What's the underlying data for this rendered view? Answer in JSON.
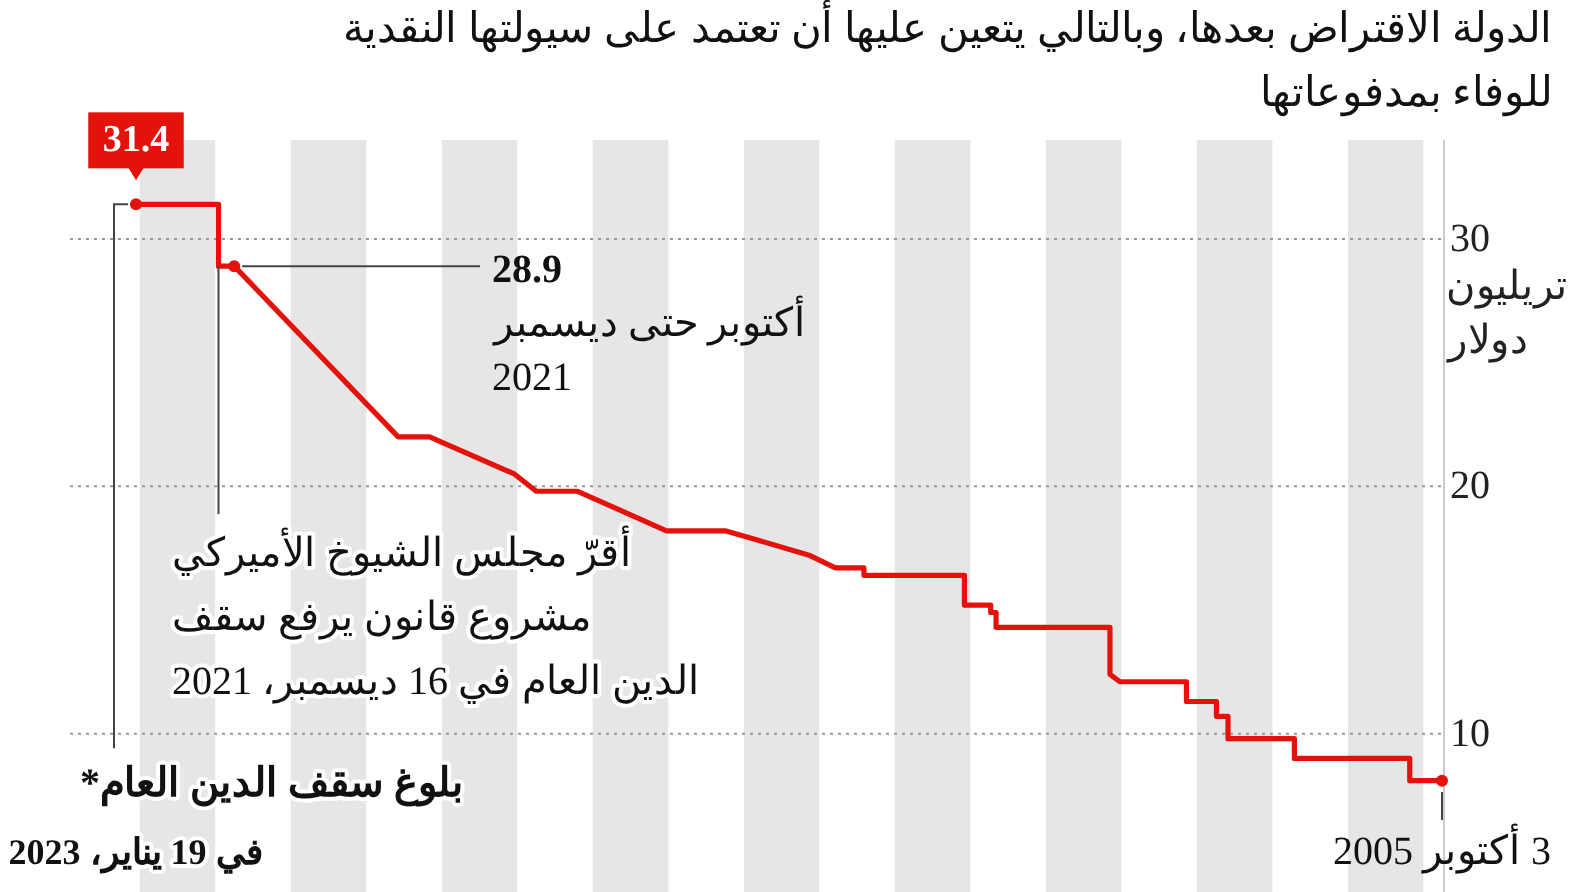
{
  "chart_data": {
    "type": "line",
    "title": "الدولة الاقتراض بعدها، وبالتالي يتعين عليها أن تعتمد على سيولتها النقدية\nللوفاء بمدفوعاتها",
    "ylabel": "تريليون دولار",
    "x": [
      "2023-01-19",
      "2021-12-16",
      "2021-12-16",
      "2021-10-01",
      "2019-07-31",
      "2019-03-01",
      "2018-01-15",
      "2017-10-01",
      "2017-03-15",
      "2016-01-10",
      "2015-04-01",
      "2014-10-15",
      "2014-02-15",
      "2013-10-15",
      "2013-05-30",
      "2013-05-30",
      "2012-01-30",
      "2012-01-30",
      "2011-09-25",
      "2011-09-25",
      "2011-08-30",
      "2011-08-30",
      "2010-02-25",
      "2010-02-25",
      "2010-01-08",
      "2009-02-20",
      "2009-02-20",
      "2008-09-28",
      "2008-09-28",
      "2008-08-03",
      "2008-08-03",
      "2007-09-17",
      "2007-09-17",
      "2006-03-08",
      "2006-03-08",
      "2005-10-03"
    ],
    "series": [
      {
        "color": "#e3120b",
        "values": [
          31.4,
          31.4,
          28.9,
          28.9,
          22.0,
          22.0,
          20.5,
          19.8,
          19.8,
          18.2,
          18.2,
          17.8,
          17.2,
          16.7,
          16.7,
          16.4,
          16.4,
          15.2,
          15.2,
          14.9,
          14.9,
          14.3,
          14.3,
          12.4,
          12.1,
          12.1,
          11.3,
          11.3,
          10.7,
          10.7,
          9.8,
          9.8,
          9.0,
          9.0,
          8.1,
          8.1
        ]
      }
    ],
    "xlim": [
      "2023-01-19",
      "2005-10-03"
    ],
    "ylim": [
      3.6,
      34
    ],
    "yticks": [
      10,
      20,
      30
    ],
    "xticks": [
      {
        "value": "2023-01-19",
        "label": "في 19 يناير، 2023"
      },
      {
        "value": "2005-10-03",
        "label": "3 أكتوبر 2005"
      }
    ],
    "grid": "y",
    "marker": "none",
    "line_style": "solid",
    "bands": [
      {
        "axis": "x",
        "from": "2022-01-01",
        "to": "2023-01-01",
        "color": "#e6e6e6"
      },
      {
        "axis": "x",
        "from": "2020-01-01",
        "to": "2021-01-01",
        "color": "#e6e6e6"
      },
      {
        "axis": "x",
        "from": "2018-01-01",
        "to": "2019-01-01",
        "color": "#e6e6e6"
      },
      {
        "axis": "x",
        "from": "2016-01-01",
        "to": "2017-01-01",
        "color": "#e6e6e6"
      },
      {
        "axis": "x",
        "from": "2014-01-01",
        "to": "2015-01-01",
        "color": "#e6e6e6"
      },
      {
        "axis": "x",
        "from": "2012-01-01",
        "to": "2013-01-01",
        "color": "#e6e6e6"
      },
      {
        "axis": "x",
        "from": "2010-01-01",
        "to": "2011-01-01",
        "color": "#e6e6e6"
      },
      {
        "axis": "x",
        "from": "2008-01-01",
        "to": "2009-01-01",
        "color": "#e6e6e6"
      },
      {
        "axis": "x",
        "from": "2006-01-01",
        "to": "2007-01-01",
        "color": "#e6e6e6"
      }
    ],
    "annotations": [
      {
        "text": "31.4",
        "x": "2023-01-19",
        "y": 31.4
      },
      {
        "text": "28.9\nأكتوبر حتى ديسمبر\n2021",
        "x": "2021-10-01",
        "y": 28.9
      },
      {
        "text": "أقرّ مجلس الشيوخ الأميركي\nمشروع قانون يرفع سقف\nالدين العام في 16 ديسمبر، 2021",
        "x": "2021-12-16",
        "y": 28.9
      },
      {
        "text": "بلوغ سقف الدين العام*",
        "x": "2023-01-19",
        "y": 31.4
      }
    ]
  }
}
